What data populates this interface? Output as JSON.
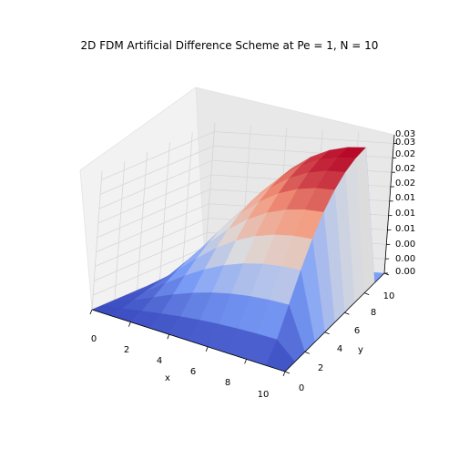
{
  "chart_data": {
    "type": "surface3d",
    "title": "2D FDM Artificial Difference Scheme at Pe = 1, N = 10",
    "xlabel": "x",
    "ylabel": "y",
    "zlabel": "",
    "colormap": "coolwarm",
    "xlim": [
      0,
      10
    ],
    "ylim": [
      0,
      10
    ],
    "zlim": [
      0,
      0.03
    ],
    "x_ticks": [
      "0",
      "2",
      "4",
      "6",
      "8",
      "10"
    ],
    "y_ticks": [
      "0",
      "2",
      "4",
      "6",
      "8",
      "10"
    ],
    "z_ticks": [
      "0.00",
      "0.00",
      "0.00",
      "0.01",
      "0.01",
      "0.01",
      "0.02",
      "0.02",
      "0.02",
      "0.03",
      "0.03"
    ],
    "grid_points": 11,
    "z_max": 0.029
  }
}
